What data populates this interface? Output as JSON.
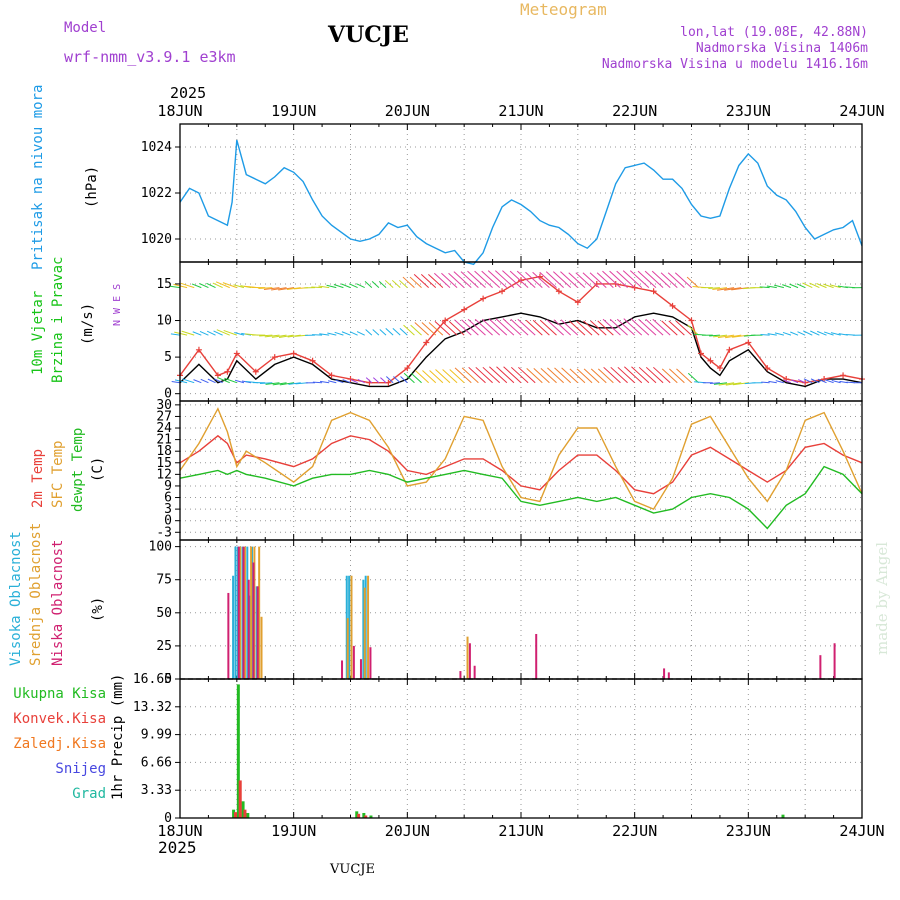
{
  "header": {
    "model_label": "Model",
    "model_name": "wrf-nmm_v3.9.1 e3km",
    "station": "VUCJE",
    "meteogram": "Meteogram",
    "lonlat": "lon,lat (19.08E, 42.88N)",
    "elevation": "Nadmorska Visina 1406m",
    "model_elevation": "Nadmorska Visina u modelu 1416.16m",
    "year_top": "2025",
    "year_bottom": "2025",
    "footer_station": "VUCJE",
    "credit": "made by Angel"
  },
  "colors": {
    "pressure": "#1e9be6",
    "wind": "#18c418",
    "black": "#000000",
    "red": "#e8403a",
    "gold": "#e0a030",
    "green": "#22bb22",
    "cyan": "#2ab0d8",
    "magenta": "#d02070",
    "purple": "#a040d0",
    "orange": "#f07820",
    "blue": "#4848e0",
    "teal": "#20b8a0"
  },
  "chart_data": {
    "type": "meteogram",
    "x_labels": [
      "18JUN",
      "19JUN",
      "20JUN",
      "21JUN",
      "22JUN",
      "23JUN",
      "24JUN"
    ],
    "x_range_hours": [
      0,
      144
    ],
    "panels": [
      {
        "id": "pressure",
        "type": "line",
        "ylabel_1": "Pritisak na nivou mora",
        "ylabel_2": "(hPa)",
        "ylim": [
          1019,
          1025
        ],
        "ticks": [
          1020,
          1022,
          1024
        ],
        "tick_labels": [
          "1020",
          "1022",
          "1024"
        ],
        "series": [
          {
            "name": "MSLP",
            "color": "#1e9be6",
            "x": [
              0,
              2,
              4,
              6,
              8,
              10,
              11,
              12,
              14,
              16,
              18,
              20,
              22,
              24,
              26,
              28,
              30,
              32,
              34,
              36,
              38,
              40,
              42,
              44,
              46,
              48,
              50,
              52,
              54,
              56,
              58,
              60,
              62,
              64,
              66,
              68,
              70,
              72,
              74,
              76,
              78,
              80,
              82,
              84,
              86,
              88,
              90,
              92,
              94,
              96,
              98,
              100,
              102,
              104,
              106,
              108,
              110,
              112,
              114,
              116,
              118,
              120,
              122,
              124,
              126,
              128,
              130,
              132,
              134,
              136,
              138,
              140,
              142,
              144
            ],
            "values": [
              1021.6,
              1022.2,
              1022.0,
              1021.0,
              1020.8,
              1020.6,
              1021.6,
              1024.3,
              1022.8,
              1022.6,
              1022.4,
              1022.7,
              1023.1,
              1022.9,
              1022.5,
              1021.7,
              1021.0,
              1020.6,
              1020.3,
              1020.0,
              1019.9,
              1020.0,
              1020.2,
              1020.7,
              1020.5,
              1020.6,
              1020.1,
              1019.8,
              1019.6,
              1019.4,
              1019.5,
              1019.0,
              1018.9,
              1019.4,
              1020.5,
              1021.4,
              1021.7,
              1021.5,
              1021.2,
              1020.8,
              1020.6,
              1020.5,
              1020.2,
              1019.8,
              1019.6,
              1020.0,
              1021.2,
              1022.4,
              1023.1,
              1023.2,
              1023.3,
              1023.0,
              1022.6,
              1022.6,
              1022.2,
              1021.5,
              1021.0,
              1020.9,
              1021.0,
              1022.2,
              1023.2,
              1023.7,
              1023.3,
              1022.3,
              1021.9,
              1021.7,
              1021.2,
              1020.5,
              1020.0,
              1020.2,
              1020.4,
              1020.5,
              1020.8,
              1019.7
            ]
          }
        ]
      },
      {
        "id": "wind",
        "type": "line+barbs",
        "ylabel_1": "10m Vjetar",
        "ylabel_2": "Brzina i Pravac",
        "ylabel_3": "(m/s)",
        "compass": "N  W  E  S",
        "ylim": [
          -1,
          18
        ],
        "ticks": [
          0,
          5,
          10,
          15
        ],
        "tick_labels": [
          "0",
          "5",
          "10",
          "15"
        ],
        "series": [
          {
            "name": "speed",
            "color": "#000000",
            "x": [
              0,
              4,
              8,
              10,
              12,
              16,
              20,
              24,
              28,
              32,
              36,
              40,
              44,
              48,
              52,
              56,
              60,
              64,
              68,
              72,
              76,
              80,
              84,
              88,
              92,
              96,
              100,
              104,
              108,
              110,
              112,
              114,
              116,
              120,
              124,
              128,
              132,
              136,
              140,
              144
            ],
            "values": [
              1.5,
              4.0,
              1.5,
              2.0,
              4.5,
              2.0,
              4.0,
              5.0,
              4.0,
              2.0,
              1.5,
              1.0,
              1.0,
              2.0,
              5.0,
              7.5,
              8.5,
              10.0,
              10.5,
              11.0,
              10.5,
              9.5,
              10.0,
              9.0,
              9.0,
              10.5,
              11.0,
              10.5,
              9.0,
              5.0,
              3.5,
              2.5,
              4.5,
              6.0,
              3.0,
              1.5,
              1.0,
              2.0,
              2.0,
              1.5
            ]
          },
          {
            "name": "gust",
            "color": "#e8403a",
            "x": [
              0,
              4,
              8,
              10,
              12,
              16,
              20,
              24,
              28,
              32,
              36,
              40,
              44,
              48,
              52,
              56,
              60,
              64,
              68,
              72,
              76,
              80,
              84,
              88,
              92,
              96,
              100,
              104,
              108,
              110,
              112,
              114,
              116,
              120,
              124,
              128,
              132,
              136,
              140,
              144
            ],
            "values": [
              2.5,
              6.0,
              2.5,
              3.0,
              5.5,
              3.0,
              5.0,
              5.5,
              4.5,
              2.5,
              2.0,
              1.5,
              1.5,
              3.5,
              7.0,
              10.0,
              11.5,
              13.0,
              14.0,
              15.5,
              16.0,
              14.0,
              12.5,
              15.0,
              15.0,
              14.5,
              14.0,
              12.0,
              10.0,
              5.5,
              4.5,
              3.5,
              6.0,
              7.0,
              3.5,
              2.0,
              1.5,
              2.0,
              2.5,
              2.0
            ]
          }
        ],
        "barb_levels": [
          1.5,
          8,
          14.5
        ]
      },
      {
        "id": "temperature",
        "type": "line",
        "ylabel_1": "2m Temp",
        "ylabel_2": "SFC Temp",
        "ylabel_3": "dewpt Temp",
        "ylabel_4": "(C)",
        "ylim": [
          -5,
          31
        ],
        "ticks": [
          -3,
          0,
          3,
          6,
          9,
          12,
          15,
          18,
          21,
          24,
          27,
          30
        ],
        "tick_labels": [
          "-3",
          "0",
          "3",
          "6",
          "9",
          "12",
          "15",
          "18",
          "21",
          "24",
          "27",
          "30"
        ],
        "series": [
          {
            "name": "2m Temp",
            "color": "#e8403a",
            "x": [
              0,
              4,
              8,
              10,
              12,
              14,
              18,
              24,
              28,
              32,
              36,
              40,
              44,
              48,
              52,
              56,
              60,
              64,
              68,
              72,
              76,
              80,
              84,
              88,
              92,
              96,
              100,
              104,
              108,
              112,
              116,
              120,
              124,
              128,
              132,
              136,
              140,
              144
            ],
            "values": [
              15,
              18,
              22,
              20,
              15,
              17,
              16,
              14,
              16,
              20,
              22,
              21,
              18,
              13,
              12,
              14,
              16,
              16,
              13,
              9,
              8,
              13,
              17,
              17,
              13,
              8,
              7,
              10,
              17,
              19,
              16,
              13,
              10,
              13,
              19,
              20,
              17,
              15
            ]
          },
          {
            "name": "SFC Temp",
            "color": "#e0a030",
            "x": [
              0,
              4,
              8,
              10,
              12,
              14,
              18,
              24,
              28,
              32,
              36,
              40,
              44,
              48,
              52,
              56,
              60,
              64,
              68,
              72,
              76,
              80,
              84,
              88,
              92,
              96,
              100,
              104,
              108,
              112,
              116,
              120,
              124,
              128,
              132,
              136,
              140,
              144
            ],
            "values": [
              13,
              20,
              29,
              23,
              14,
              18,
              15,
              10,
              14,
              26,
              28,
              26,
              19,
              9,
              10,
              16,
              27,
              26,
              14,
              6,
              5,
              17,
              24,
              24,
              14,
              5,
              3,
              11,
              25,
              27,
              19,
              11,
              5,
              13,
              26,
              28,
              18,
              7
            ]
          },
          {
            "name": "dewpt Temp",
            "color": "#22bb22",
            "x": [
              0,
              4,
              8,
              10,
              12,
              14,
              18,
              24,
              28,
              32,
              36,
              40,
              44,
              48,
              52,
              56,
              60,
              64,
              68,
              72,
              76,
              80,
              84,
              88,
              92,
              96,
              100,
              104,
              108,
              112,
              116,
              120,
              124,
              128,
              132,
              136,
              140,
              144
            ],
            "values": [
              11,
              12,
              13,
              12,
              13,
              12,
              11,
              9,
              11,
              12,
              12,
              13,
              12,
              10,
              11,
              12,
              13,
              12,
              11,
              5,
              4,
              5,
              6,
              5,
              6,
              4,
              2,
              3,
              6,
              7,
              6,
              3,
              -2,
              4,
              7,
              14,
              12,
              7
            ]
          }
        ]
      },
      {
        "id": "clouds",
        "type": "bar",
        "ylabel_1": "Visoka Oblacnost",
        "ylabel_2": "Srednja Oblacnost",
        "ylabel_3": "Niska Oblacnost",
        "ylabel_4": "(%)",
        "ylim": [
          0,
          105
        ],
        "ticks": [
          0,
          25,
          50,
          75,
          100
        ],
        "tick_labels": [
          "0",
          "25",
          "50",
          "75",
          "100"
        ],
        "series": [
          {
            "name": "Visoka",
            "color": "#2ab0d8",
            "x": [
              11,
              11.5,
              12,
              13,
              14,
              14.5,
              15,
              16,
              35,
              35.5,
              38.5,
              39
            ],
            "values": [
              78,
              100,
              100,
              100,
              100,
              63,
              100,
              70,
              78,
              78,
              75,
              78
            ]
          },
          {
            "name": "Srednja",
            "color": "#e0a030",
            "x": [
              12.5,
              13.5,
              14.8,
              15.5,
              16.5,
              17,
              35.2,
              36,
              38.8,
              39.5,
              60.5
            ],
            "values": [
              100,
              100,
              100,
              100,
              100,
              47,
              46,
              78,
              69,
              78,
              32
            ]
          },
          {
            "name": "Niska",
            "color": "#d02070",
            "x": [
              10,
              12.2,
              13.2,
              14.3,
              15.3,
              16.2,
              34,
              36.5,
              38,
              40,
              59,
              61,
              62,
              75,
              102,
              103,
              135,
              138
            ],
            "values": [
              65,
              100,
              100,
              75,
              88,
              70,
              14,
              25,
              15,
              24,
              6,
              27,
              10,
              34,
              8,
              5,
              18,
              27
            ]
          }
        ]
      },
      {
        "id": "precip",
        "type": "bar",
        "ylabel_1": "1hr Precip (mm)",
        "legend": [
          "Ukupna Kisa",
          "Konvek.Kisa",
          "Zaledj.Kisa",
          "Snijeg",
          "Grad"
        ],
        "ylim": [
          0,
          16.65
        ],
        "ticks": [
          0,
          3.33,
          6.66,
          9.99,
          13.32,
          16.65
        ],
        "tick_labels": [
          "0",
          "3.33",
          "6.66",
          "9.99",
          "13.32",
          "16.65"
        ],
        "series": [
          {
            "name": "Ukupna Kisa",
            "color": "#22bb22",
            "x": [
              11,
              12,
              13,
              14,
              37,
              38.5,
              40,
              127
            ],
            "values": [
              1.0,
              16.0,
              2.0,
              0.6,
              0.8,
              0.6,
              0.3,
              0.4
            ]
          },
          {
            "name": "Konvek.Kisa",
            "color": "#e8403a",
            "x": [
              11.4,
              12.4,
              13.4,
              37.4,
              38.9
            ],
            "values": [
              0.7,
              4.5,
              1.0,
              0.5,
              0.3
            ]
          }
        ]
      }
    ]
  }
}
